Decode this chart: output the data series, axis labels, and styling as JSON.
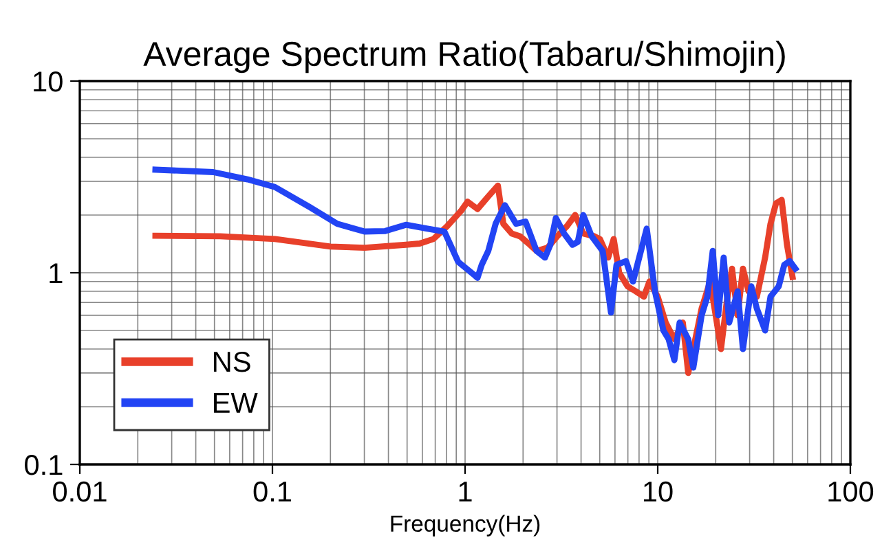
{
  "chart_data": {
    "type": "line",
    "title": "Average Spectrum Ratio(Tabaru/Shimojin)",
    "xlabel": "Frequency(Hz)",
    "log": "xy",
    "xlim": [
      0.01,
      100
    ],
    "ylim": [
      0.1,
      10
    ],
    "xticks": [
      0.01,
      0.1,
      1,
      10,
      100
    ],
    "yticks": [
      0.1,
      1,
      10
    ],
    "grid": true,
    "legend": "bottom left",
    "line_style": "solid",
    "series": [
      {
        "name": "NS",
        "color": "#e8402a",
        "x": [
          0.0247,
          0.0536,
          0.103,
          0.2,
          0.301,
          0.493,
          0.581,
          0.685,
          0.807,
          0.952,
          1.03,
          1.16,
          1.32,
          1.48,
          1.58,
          1.75,
          1.93,
          2.17,
          2.35,
          2.68,
          3.01,
          3.38,
          3.73,
          4.11,
          4.69,
          5.01,
          5.53,
          5.91,
          6.31,
          6.97,
          7.69,
          8.48,
          9.06,
          10,
          11.0,
          12.2,
          13.5,
          14.4,
          15.3,
          16.9,
          18.7,
          20.0,
          21.3,
          22.8,
          24.3,
          26.0,
          27.7,
          29.6,
          32.7,
          36.1,
          38.5,
          41.1,
          44.0,
          46.9,
          50.1
        ],
        "values": [
          1.56,
          1.55,
          1.5,
          1.37,
          1.35,
          1.4,
          1.42,
          1.5,
          1.75,
          2.1,
          2.35,
          2.15,
          2.5,
          2.85,
          1.8,
          1.6,
          1.55,
          1.4,
          1.3,
          1.35,
          1.55,
          1.75,
          2.0,
          1.6,
          1.55,
          1.5,
          1.2,
          1.5,
          1.0,
          0.85,
          0.8,
          0.75,
          0.9,
          0.75,
          0.55,
          0.45,
          0.55,
          0.3,
          0.4,
          0.65,
          0.9,
          0.6,
          0.4,
          0.7,
          1.05,
          0.6,
          1.05,
          0.8,
          0.75,
          1.2,
          1.8,
          2.3,
          2.4,
          1.4,
          0.95
        ]
      },
      {
        "name": "EW",
        "color": "#2244f4",
        "x": [
          0.0247,
          0.0493,
          0.0743,
          0.103,
          0.156,
          0.217,
          0.301,
          0.385,
          0.493,
          0.631,
          0.781,
          0.921,
          1.12,
          1.16,
          1.22,
          1.32,
          1.44,
          1.61,
          1.84,
          2.06,
          2.35,
          2.6,
          2.77,
          2.96,
          3.27,
          3.61,
          3.85,
          4.11,
          4.54,
          5.18,
          5.72,
          6.11,
          6.85,
          7.44,
          8.77,
          9.68,
          10.7,
          11.4,
          12.2,
          13.0,
          14.4,
          15.3,
          16.9,
          18.1,
          19.3,
          20.6,
          22.0,
          23.5,
          26.0,
          27.7,
          30.6,
          32.7,
          36.1,
          38.5,
          42.5,
          45.4,
          48.5,
          51.8
        ],
        "values": [
          3.45,
          3.35,
          3.07,
          2.8,
          2.2,
          1.8,
          1.64,
          1.65,
          1.78,
          1.7,
          1.64,
          1.14,
          0.97,
          0.94,
          1.1,
          1.3,
          1.8,
          2.25,
          1.8,
          1.85,
          1.3,
          1.2,
          1.4,
          1.93,
          1.6,
          1.4,
          1.45,
          2.0,
          1.55,
          1.3,
          0.62,
          1.1,
          1.15,
          0.9,
          1.7,
          0.8,
          0.5,
          0.45,
          0.35,
          0.55,
          0.45,
          0.32,
          0.6,
          0.75,
          1.3,
          0.6,
          1.2,
          0.55,
          0.8,
          0.4,
          0.85,
          0.65,
          0.5,
          0.75,
          0.85,
          1.1,
          1.15,
          1.05
        ]
      }
    ]
  }
}
